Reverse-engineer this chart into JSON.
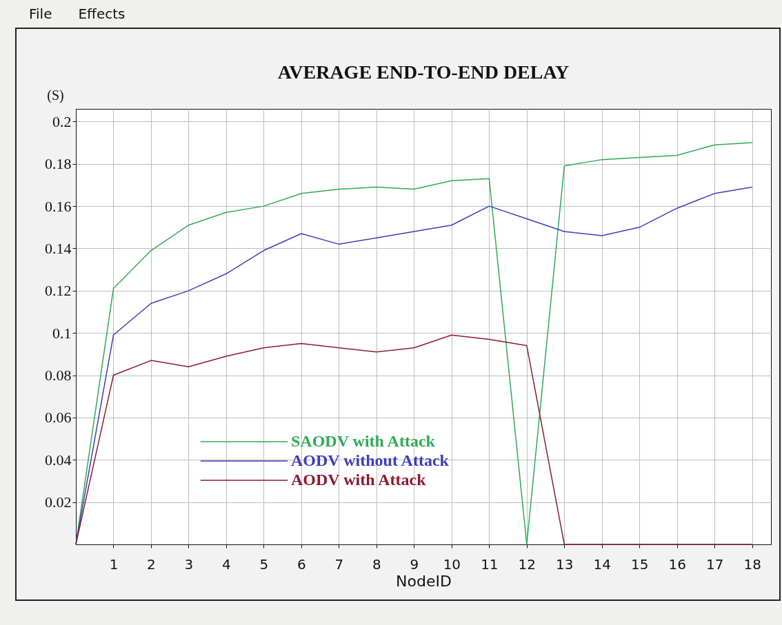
{
  "chart_data": {
    "type": "line",
    "title": "AVERAGE END-TO-END DELAY",
    "xlabel": "NodeID",
    "ylabel": "(S)",
    "annotations": [
      "File",
      "Effects"
    ],
    "x": [
      0,
      1,
      2,
      3,
      4,
      5,
      6,
      7,
      8,
      9,
      10,
      11,
      12,
      13,
      14,
      15,
      16,
      17,
      18
    ],
    "xlim": [
      0,
      18.5
    ],
    "xticks": [
      1,
      2,
      3,
      4,
      5,
      6,
      7,
      8,
      9,
      10,
      11,
      12,
      13,
      14,
      15,
      16,
      17,
      18
    ],
    "ylim": [
      0,
      0.206
    ],
    "yticks": [
      {
        "value": 0.02,
        "label": "0.02"
      },
      {
        "value": 0.04,
        "label": "0.04"
      },
      {
        "value": 0.06,
        "label": "0.06"
      },
      {
        "value": 0.08,
        "label": "0.08"
      },
      {
        "value": 0.1,
        "label": "0.1"
      },
      {
        "value": 0.12,
        "label": "0.12"
      },
      {
        "value": 0.14,
        "label": "0.14"
      },
      {
        "value": 0.16,
        "label": "0.16"
      },
      {
        "value": 0.18,
        "label": "0.18"
      },
      {
        "value": 0.2,
        "label": "0.2"
      }
    ],
    "grid": true,
    "legend": "bottom",
    "line_style": "solid",
    "series": [
      {
        "name": "SAODV with Attack",
        "color": "#2eaa55",
        "values": [
          0,
          0.121,
          0.139,
          0.151,
          0.157,
          0.16,
          0.166,
          0.168,
          0.169,
          0.168,
          0.172,
          0.173,
          0,
          0.179,
          0.182,
          0.183,
          0.184,
          0.189,
          0.19
        ]
      },
      {
        "name": "AODV without Attack",
        "color": "#3d3dbb",
        "values": [
          0,
          0.099,
          0.114,
          0.12,
          0.128,
          0.139,
          0.147,
          0.142,
          0.145,
          0.148,
          0.151,
          0.16,
          0.154,
          0.148,
          0.146,
          0.15,
          0.159,
          0.166,
          0.169
        ]
      },
      {
        "name": "AODV with Attack",
        "color": "#8b1a2e",
        "values": [
          0,
          0.08,
          0.087,
          0.084,
          0.089,
          0.093,
          0.095,
          0.093,
          0.091,
          0.093,
          0.099,
          0.097,
          0.094,
          0,
          0,
          0,
          0,
          0,
          0
        ]
      }
    ]
  }
}
